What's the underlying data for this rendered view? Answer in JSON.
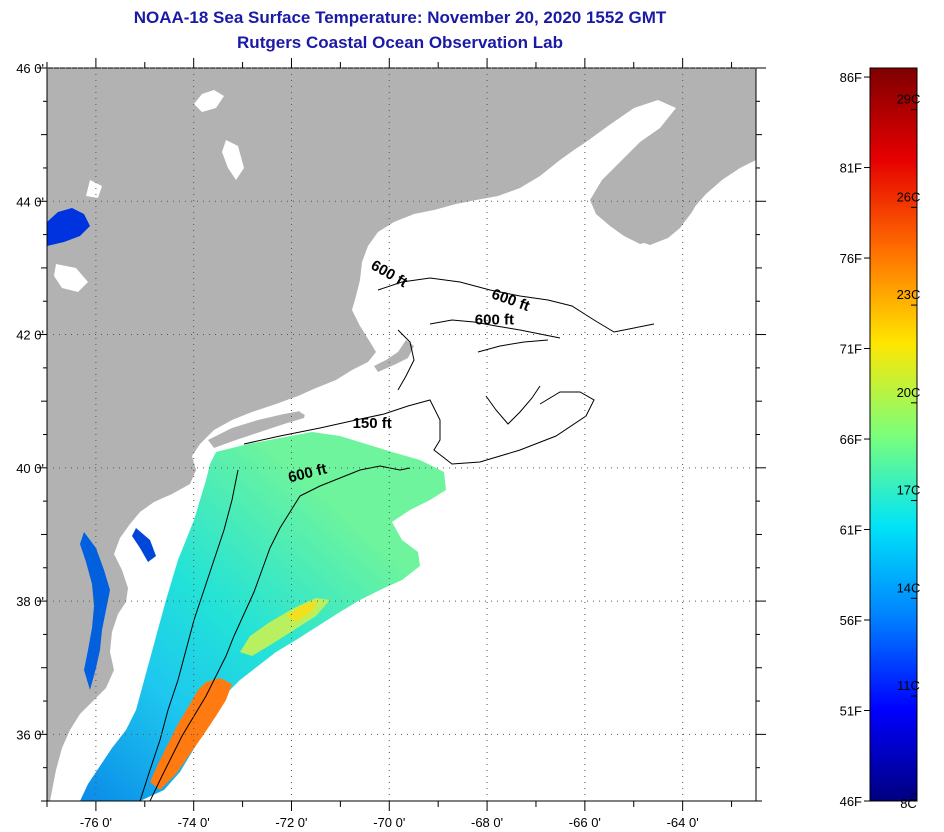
{
  "header": {
    "title_line1": "NOAA-18 Sea Surface Temperature:  November 20, 2020 1552 GMT",
    "title_line2": "Rutgers Coastal Ocean Observation Lab"
  },
  "map": {
    "lon_range": [
      -77,
      -62.5
    ],
    "lat_range": [
      35,
      46
    ],
    "lon_ticks": [
      {
        "value": -76,
        "label": "-76 0'"
      },
      {
        "value": -74,
        "label": "-74 0'"
      },
      {
        "value": -72,
        "label": "-72 0'"
      },
      {
        "value": -70,
        "label": "-70 0'"
      },
      {
        "value": -68,
        "label": "-68 0'"
      },
      {
        "value": -66,
        "label": "-66 0'"
      },
      {
        "value": -64,
        "label": "-64 0'"
      }
    ],
    "lat_ticks": [
      {
        "value": 46,
        "label": "46 0'"
      },
      {
        "value": 44,
        "label": "44 0'"
      },
      {
        "value": 42,
        "label": "42 0'"
      },
      {
        "value": 40,
        "label": "40 0'"
      },
      {
        "value": 38,
        "label": "38 0'"
      },
      {
        "value": 36,
        "label": "36 0'"
      }
    ],
    "contour_labels": [
      {
        "text": "600 ft",
        "lon": -70.05,
        "lat": 42.85,
        "angle": 30
      },
      {
        "text": "600 ft",
        "lon": -67.55,
        "lat": 42.45,
        "angle": 20
      },
      {
        "text": "600 ft",
        "lon": -67.85,
        "lat": 42.15,
        "angle": 0
      },
      {
        "text": "150 ft",
        "lon": -70.35,
        "lat": 40.6,
        "angle": 0
      },
      {
        "text": "600 ft",
        "lon": -71.65,
        "lat": 39.85,
        "angle": -14
      }
    ],
    "colors": {
      "land": "#b2b2b2",
      "cloud": "#ffffff",
      "grid": "#555555"
    }
  },
  "colorbar": {
    "min_f": 46,
    "max_f": 86.5,
    "fahrenheit_labels": [
      "86F",
      "81F",
      "76F",
      "71F",
      "66F",
      "61F",
      "56F",
      "51F",
      "46F"
    ],
    "fahrenheit_values": [
      86,
      81,
      76,
      71,
      66,
      61,
      56,
      51,
      46
    ],
    "celsius_labels": [
      "29C",
      "26C",
      "23C",
      "20C",
      "17C",
      "14C",
      "11C",
      "8C"
    ],
    "celsius_values": [
      29,
      26,
      23,
      20,
      17,
      14,
      11,
      8
    ],
    "stops": [
      "#00007f",
      "#0000ff",
      "#0080ff",
      "#00e4f8",
      "#7cff7a",
      "#ffe600",
      "#ff7000",
      "#e60000",
      "#7f0000"
    ]
  }
}
